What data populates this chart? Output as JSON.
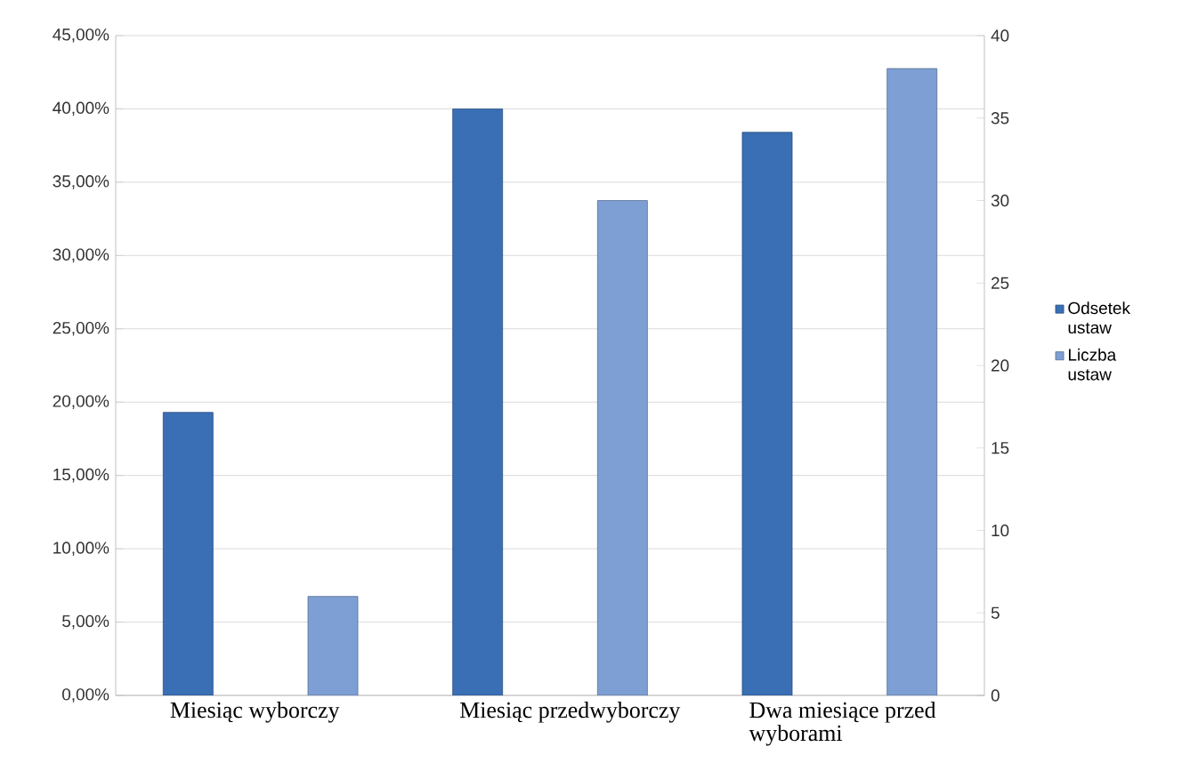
{
  "chart_data": {
    "type": "bar",
    "categories": [
      "Miesiąc wyborczy",
      "Miesiąc przedwyborczy",
      "Dwa miesiące przed wyborami"
    ],
    "series": [
      {
        "name": "Odsetek ustaw",
        "color": "#3a6fb5",
        "values": [
          19.3,
          40.0,
          38.4
        ]
      },
      {
        "name": "Liczba ustaw",
        "color": "#7e9fd3",
        "values": [
          6,
          30,
          38
        ],
        "axis": "y2"
      }
    ],
    "ylim": [
      0,
      45
    ],
    "yticks": [
      {
        "value": 0,
        "label": "0,00%"
      },
      {
        "value": 5,
        "label": "5,00%"
      },
      {
        "value": 10,
        "label": "10,00%"
      },
      {
        "value": 15,
        "label": "15,00%"
      },
      {
        "value": 20,
        "label": "20,00%"
      },
      {
        "value": 25,
        "label": "25,00%"
      },
      {
        "value": 30,
        "label": "30,00%"
      },
      {
        "value": 35,
        "label": "35,00%"
      },
      {
        "value": 40,
        "label": "40,00%"
      },
      {
        "value": 45,
        "label": "45,00%"
      }
    ],
    "y2lim": [
      0,
      40
    ],
    "y2ticks": [
      0,
      5,
      10,
      15,
      20,
      25,
      30,
      35,
      40
    ],
    "grid": "y",
    "legend": "right"
  }
}
